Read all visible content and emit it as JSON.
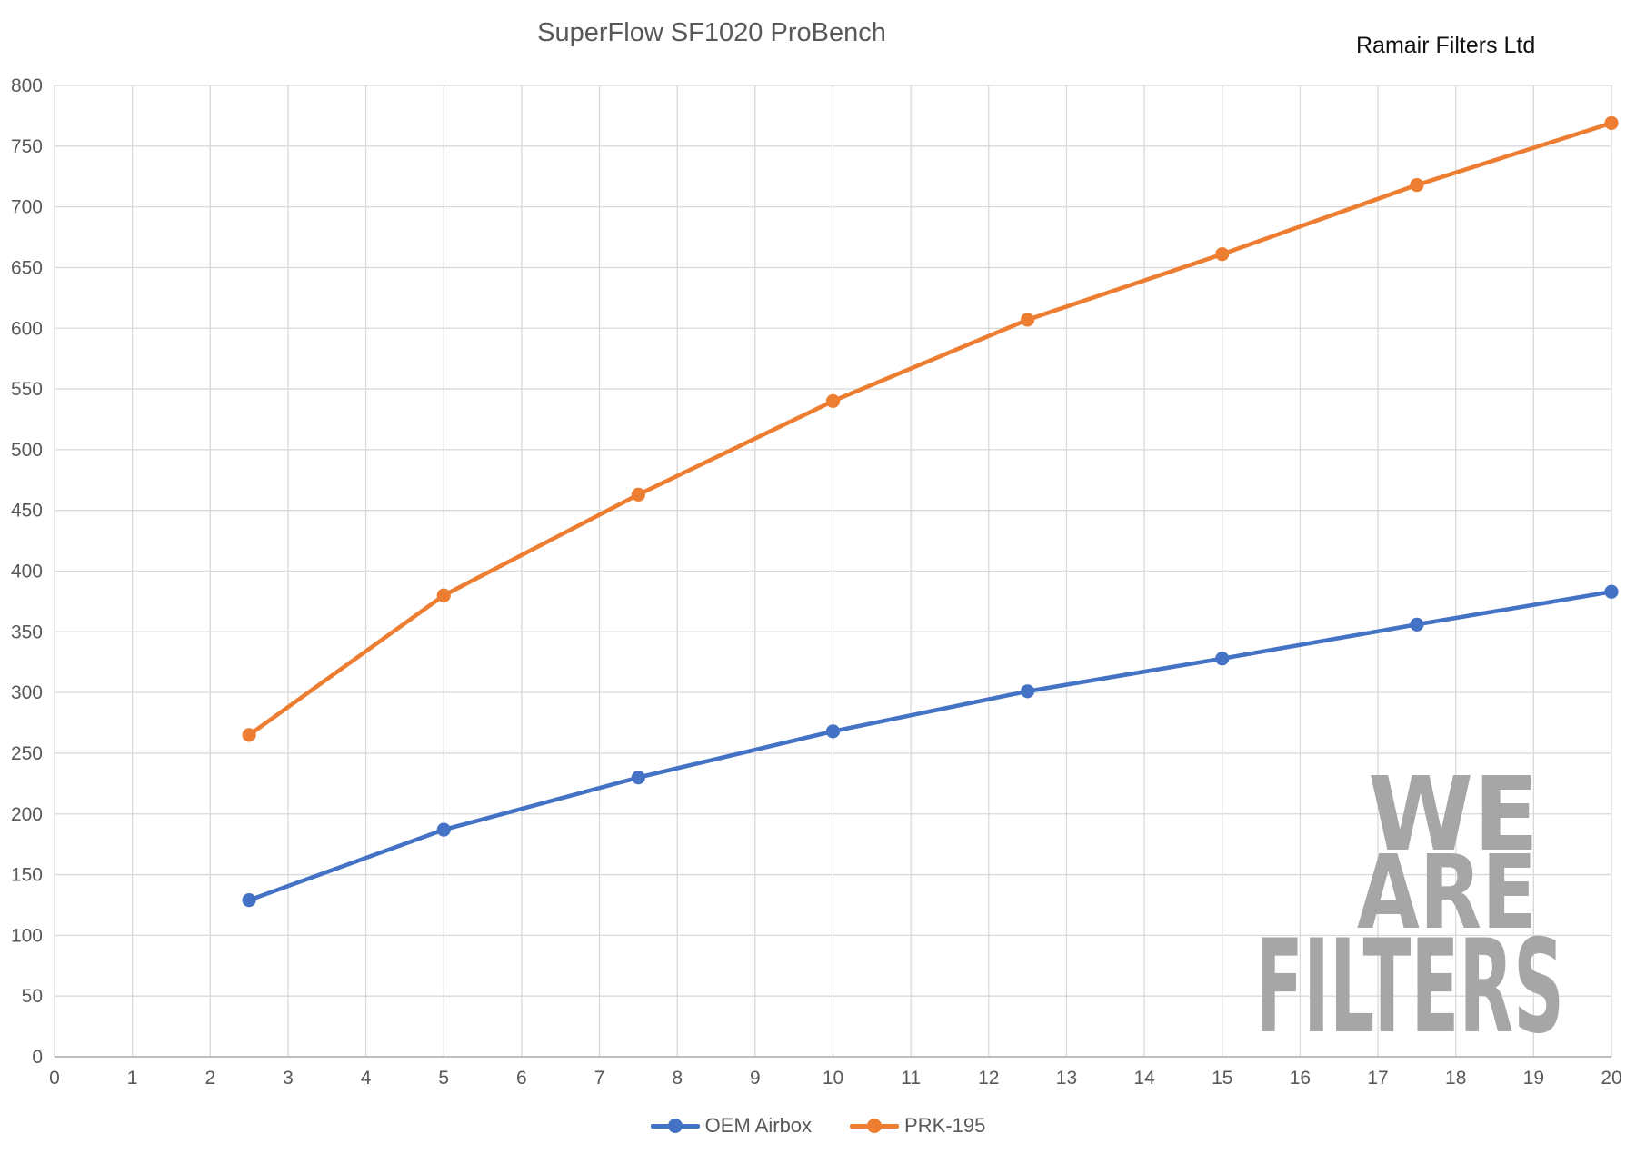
{
  "header": {
    "title": "SuperFlow SF1020 ProBench",
    "company": "Ramair Filters Ltd"
  },
  "chart_data": {
    "type": "line",
    "title": "SuperFlow SF1020 ProBench",
    "xlabel": "",
    "ylabel": "",
    "x": [
      2.5,
      5,
      7.5,
      10,
      12.5,
      15,
      17.5,
      20
    ],
    "series": [
      {
        "name": "OEM Airbox",
        "color": "#4472C4",
        "values": [
          129,
          187,
          230,
          268,
          301,
          328,
          356,
          383
        ]
      },
      {
        "name": "PRK-195",
        "color": "#ED7D31",
        "values": [
          265,
          380,
          463,
          540,
          607,
          661,
          718,
          769
        ]
      }
    ],
    "xlim": [
      0,
      20
    ],
    "ylim": [
      0,
      800
    ],
    "x_tick_step": 1,
    "y_tick_step": 50,
    "grid": true,
    "grid_color": "#D9D9D9",
    "axis_line_color": "#BFBFBF",
    "tick_label_color": "#595959",
    "legend_position": "bottom"
  },
  "legend": {
    "items": [
      {
        "label": "OEM Airbox",
        "color": "#4472C4"
      },
      {
        "label": "PRK-195",
        "color": "#ED7D31"
      }
    ]
  },
  "watermark": {
    "lines": [
      "WE",
      "ARE",
      "FILTERS"
    ],
    "color": "#A6A6A6"
  }
}
